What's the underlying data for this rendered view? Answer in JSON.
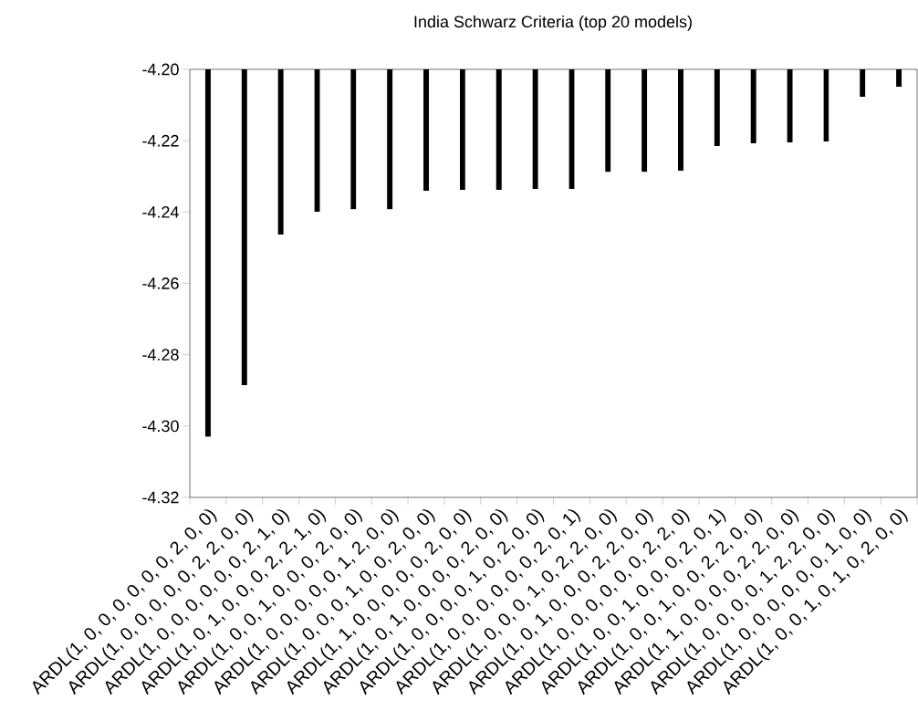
{
  "chart_data": {
    "type": "bar",
    "title": "India Schwarz Criteria (top 20 models)",
    "categories": [
      "ARDL(1, 0, 0, 0, 0, 0, 0, 2, 0, 0)",
      "ARDL(1, 0, 0, 0, 0, 0, 2, 2, 0, 0)",
      "ARDL(1, 0, 0, 0, 0, 0, 0, 2, 1, 0)",
      "ARDL(1, 0, 1, 0, 0, 0, 2, 2, 1, 0)",
      "ARDL(1, 0, 0, 1, 0, 0, 0, 2, 0, 0)",
      "ARDL(1, 0, 0, 0, 0, 0, 1, 2, 0, 0)",
      "ARDL(1, 0, 0, 0, 1, 0, 0, 2, 0, 0)",
      "ARDL(1, 1, 0, 0, 0, 0, 0, 2, 0, 0)",
      "ARDL(1, 0, 1, 0, 0, 0, 0, 2, 0, 0)",
      "ARDL(1, 0, 0, 0, 0, 1, 0, 2, 0, 0)",
      "ARDL(1, 0, 0, 0, 0, 0, 0, 2, 0, 1)",
      "ARDL(1, 0, 0, 0, 1, 0, 2, 2, 0, 0)",
      "ARDL(1, 0, 1, 0, 0, 0, 2, 2, 0, 0)",
      "ARDL(1, 0, 0, 0, 0, 0, 0, 2, 2, 0)",
      "ARDL(1, 0, 0, 1, 0, 0, 0, 2, 0, 1)",
      "ARDL(1, 0, 0, 1, 0, 0, 2, 2, 0, 0)",
      "ARDL(1, 1, 0, 0, 0, 0, 2, 2, 0, 0)",
      "ARDL(1, 0, 0, 0, 0, 1, 2, 2, 0, 0)",
      "ARDL(1, 0, 0, 0, 0, 0, 0, 1, 0, 0)",
      "ARDL(1, 0, 0, 1, 0, 1, 0, 2, 0, 0)"
    ],
    "values": [
      -4.303,
      -4.2885,
      -4.2463,
      -4.2399,
      -4.2392,
      -4.2392,
      -4.234,
      -4.2338,
      -4.2338,
      -4.2335,
      -4.2335,
      -4.2287,
      -4.2287,
      -4.2284,
      -4.2215,
      -4.2207,
      -4.2205,
      -4.2202,
      -4.2077,
      -4.2049
    ],
    "color": "#000000",
    "ylim": [
      -4.32,
      -4.2
    ],
    "yticks": [
      {
        "value": -4.32,
        "label": "-4.32"
      },
      {
        "value": -4.3,
        "label": "-4.30"
      },
      {
        "value": -4.28,
        "label": "-4.28"
      },
      {
        "value": -4.26,
        "label": "-4.26"
      },
      {
        "value": -4.24,
        "label": "-4.24"
      },
      {
        "value": -4.22,
        "label": "-4.22"
      },
      {
        "value": -4.2,
        "label": "-4.20"
      }
    ],
    "grid": false
  }
}
